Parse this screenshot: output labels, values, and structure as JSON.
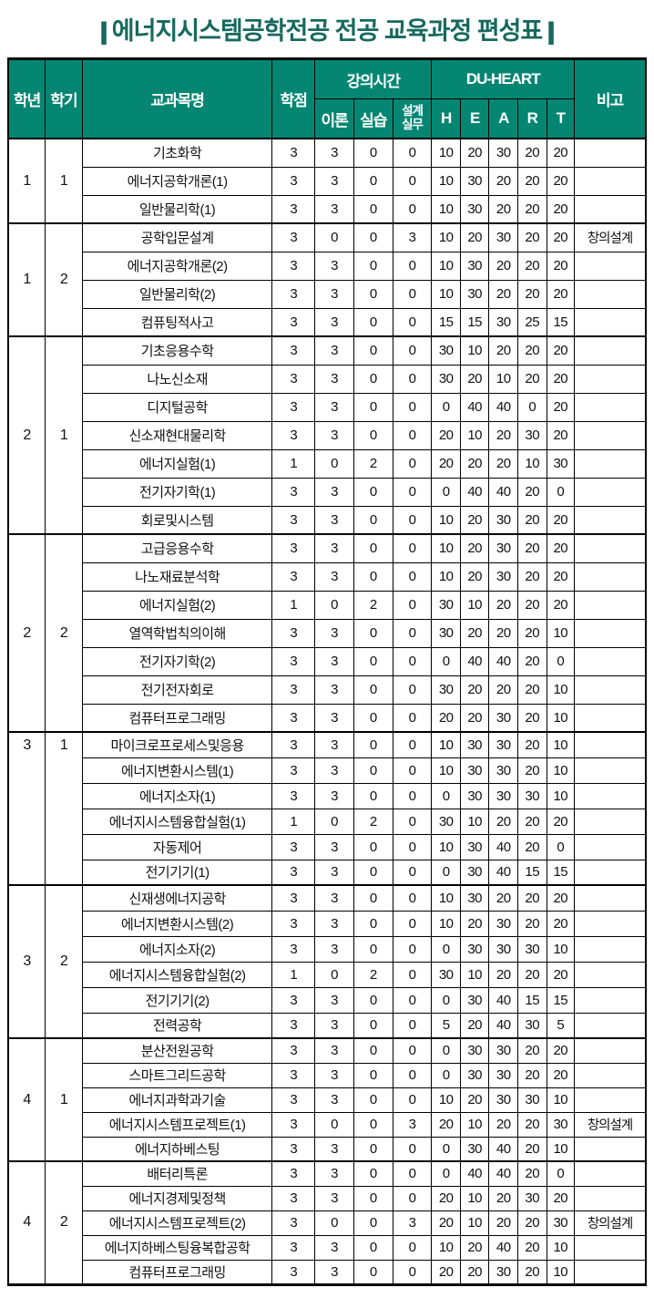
{
  "title": {
    "bar": "|",
    "text": "에너지시스템공학전공 전공 교육과정 편성표"
  },
  "colors": {
    "header_bg": "#058673",
    "header_text": "#ffffff",
    "title_text": "#17695e",
    "border": "#000000"
  },
  "table": {
    "headers": {
      "year": "학년",
      "semester": "학기",
      "course": "교과목명",
      "credits": "학점",
      "lecture_group": "강의시간",
      "theory": "이론",
      "practice": "실습",
      "design": "설계\n실무",
      "duheart_group": "DU-HEART",
      "h": "H",
      "e": "E",
      "a": "A",
      "r": "R",
      "t": "T",
      "note": "비고"
    },
    "sections": [
      {
        "year": "1",
        "semester": "1",
        "rows": [
          {
            "course": "기초화학",
            "credits": "3",
            "theory": "3",
            "practice": "0",
            "design": "0",
            "h": "10",
            "e": "20",
            "a": "30",
            "r": "20",
            "t": "20",
            "note": ""
          },
          {
            "course": "에너지공학개론(1)",
            "credits": "3",
            "theory": "3",
            "practice": "0",
            "design": "0",
            "h": "10",
            "e": "30",
            "a": "20",
            "r": "20",
            "t": "20",
            "note": ""
          },
          {
            "course": "일반물리학(1)",
            "credits": "3",
            "theory": "3",
            "practice": "0",
            "design": "0",
            "h": "10",
            "e": "30",
            "a": "20",
            "r": "20",
            "t": "20",
            "note": ""
          }
        ]
      },
      {
        "year": "1",
        "semester": "2",
        "rows": [
          {
            "course": "공학입문설계",
            "credits": "3",
            "theory": "0",
            "practice": "0",
            "design": "3",
            "h": "10",
            "e": "20",
            "a": "30",
            "r": "20",
            "t": "20",
            "note": "창의설계"
          },
          {
            "course": "에너지공학개론(2)",
            "credits": "3",
            "theory": "3",
            "practice": "0",
            "design": "0",
            "h": "10",
            "e": "30",
            "a": "20",
            "r": "20",
            "t": "20",
            "note": ""
          },
          {
            "course": "일반물리학(2)",
            "credits": "3",
            "theory": "3",
            "practice": "0",
            "design": "0",
            "h": "10",
            "e": "30",
            "a": "20",
            "r": "20",
            "t": "20",
            "note": ""
          },
          {
            "course": "컴퓨팅적사고",
            "credits": "3",
            "theory": "3",
            "practice": "0",
            "design": "0",
            "h": "15",
            "e": "15",
            "a": "30",
            "r": "25",
            "t": "15",
            "note": ""
          }
        ]
      },
      {
        "year": "2",
        "semester": "1",
        "rows": [
          {
            "course": "기초응용수학",
            "credits": "3",
            "theory": "3",
            "practice": "0",
            "design": "0",
            "h": "30",
            "e": "10",
            "a": "20",
            "r": "20",
            "t": "20",
            "note": ""
          },
          {
            "course": "나노신소재",
            "credits": "3",
            "theory": "3",
            "practice": "0",
            "design": "0",
            "h": "30",
            "e": "20",
            "a": "10",
            "r": "20",
            "t": "20",
            "note": ""
          },
          {
            "course": "디지털공학",
            "credits": "3",
            "theory": "3",
            "practice": "0",
            "design": "0",
            "h": "0",
            "e": "40",
            "a": "40",
            "r": "0",
            "t": "20",
            "note": ""
          },
          {
            "course": "신소재현대물리학",
            "credits": "3",
            "theory": "3",
            "practice": "0",
            "design": "0",
            "h": "20",
            "e": "10",
            "a": "20",
            "r": "30",
            "t": "20",
            "note": ""
          },
          {
            "course": "에너지실험(1)",
            "credits": "1",
            "theory": "0",
            "practice": "2",
            "design": "0",
            "h": "20",
            "e": "20",
            "a": "20",
            "r": "10",
            "t": "30",
            "note": ""
          },
          {
            "course": "전기자기학(1)",
            "credits": "3",
            "theory": "3",
            "practice": "0",
            "design": "0",
            "h": "0",
            "e": "40",
            "a": "40",
            "r": "20",
            "t": "0",
            "note": ""
          },
          {
            "course": "회로및시스템",
            "credits": "3",
            "theory": "3",
            "practice": "0",
            "design": "0",
            "h": "10",
            "e": "20",
            "a": "30",
            "r": "20",
            "t": "20",
            "note": ""
          }
        ]
      },
      {
        "year": "2",
        "semester": "2",
        "rows": [
          {
            "course": "고급응용수학",
            "credits": "3",
            "theory": "3",
            "practice": "0",
            "design": "0",
            "h": "10",
            "e": "20",
            "a": "30",
            "r": "20",
            "t": "20",
            "note": ""
          },
          {
            "course": "나노재료분석학",
            "credits": "3",
            "theory": "3",
            "practice": "0",
            "design": "0",
            "h": "10",
            "e": "20",
            "a": "30",
            "r": "20",
            "t": "20",
            "note": ""
          },
          {
            "course": "에너지실험(2)",
            "credits": "1",
            "theory": "0",
            "practice": "2",
            "design": "0",
            "h": "30",
            "e": "10",
            "a": "20",
            "r": "20",
            "t": "20",
            "note": ""
          },
          {
            "course": "열역학법칙의이해",
            "credits": "3",
            "theory": "3",
            "practice": "0",
            "design": "0",
            "h": "30",
            "e": "20",
            "a": "20",
            "r": "20",
            "t": "10",
            "note": ""
          },
          {
            "course": "전기자기학(2)",
            "credits": "3",
            "theory": "3",
            "practice": "0",
            "design": "0",
            "h": "0",
            "e": "40",
            "a": "40",
            "r": "20",
            "t": "0",
            "note": ""
          },
          {
            "course": "전기전자회로",
            "credits": "3",
            "theory": "3",
            "practice": "0",
            "design": "0",
            "h": "30",
            "e": "20",
            "a": "20",
            "r": "20",
            "t": "10",
            "note": ""
          },
          {
            "course": "컴퓨터프로그래밍",
            "credits": "3",
            "theory": "3",
            "practice": "0",
            "design": "0",
            "h": "20",
            "e": "20",
            "a": "30",
            "r": "20",
            "t": "10",
            "note": ""
          }
        ]
      },
      {
        "year": "3",
        "semester": "1",
        "year_valign": "top",
        "rows": [
          {
            "course": "마이크로프로세스및응용",
            "credits": "3",
            "theory": "3",
            "practice": "0",
            "design": "0",
            "h": "10",
            "e": "30",
            "a": "30",
            "r": "20",
            "t": "10",
            "note": ""
          },
          {
            "course": "에너지변환시스템(1)",
            "credits": "3",
            "theory": "3",
            "practice": "0",
            "design": "0",
            "h": "10",
            "e": "30",
            "a": "30",
            "r": "20",
            "t": "10",
            "note": ""
          },
          {
            "course": "에너지소자(1)",
            "credits": "3",
            "theory": "3",
            "practice": "0",
            "design": "0",
            "h": "0",
            "e": "30",
            "a": "30",
            "r": "30",
            "t": "10",
            "note": ""
          },
          {
            "course": "에너지시스템융합실험(1)",
            "credits": "1",
            "theory": "0",
            "practice": "2",
            "design": "0",
            "h": "30",
            "e": "10",
            "a": "20",
            "r": "20",
            "t": "20",
            "note": ""
          },
          {
            "course": "자동제어",
            "credits": "3",
            "theory": "3",
            "practice": "0",
            "design": "0",
            "h": "10",
            "e": "30",
            "a": "40",
            "r": "20",
            "t": "0",
            "note": ""
          },
          {
            "course": "전기기기(1)",
            "credits": "3",
            "theory": "3",
            "practice": "0",
            "design": "0",
            "h": "0",
            "e": "30",
            "a": "40",
            "r": "15",
            "t": "15",
            "note": ""
          }
        ]
      },
      {
        "year": "3",
        "semester": "2",
        "rows": [
          {
            "course": "신재생에너지공학",
            "credits": "3",
            "theory": "3",
            "practice": "0",
            "design": "0",
            "h": "10",
            "e": "30",
            "a": "20",
            "r": "20",
            "t": "20",
            "note": ""
          },
          {
            "course": "에너지변환시스템(2)",
            "credits": "3",
            "theory": "3",
            "practice": "0",
            "design": "0",
            "h": "10",
            "e": "20",
            "a": "30",
            "r": "20",
            "t": "20",
            "note": ""
          },
          {
            "course": "에너지소자(2)",
            "credits": "3",
            "theory": "3",
            "practice": "0",
            "design": "0",
            "h": "0",
            "e": "30",
            "a": "30",
            "r": "30",
            "t": "10",
            "note": ""
          },
          {
            "course": "에너지시스템융합실험(2)",
            "credits": "1",
            "theory": "0",
            "practice": "2",
            "design": "0",
            "h": "30",
            "e": "10",
            "a": "20",
            "r": "20",
            "t": "20",
            "note": ""
          },
          {
            "course": "전기기기(2)",
            "credits": "3",
            "theory": "3",
            "practice": "0",
            "design": "0",
            "h": "0",
            "e": "30",
            "a": "40",
            "r": "15",
            "t": "15",
            "note": ""
          },
          {
            "course": "전력공학",
            "credits": "3",
            "theory": "3",
            "practice": "0",
            "design": "0",
            "h": "5",
            "e": "20",
            "a": "40",
            "r": "30",
            "t": "5",
            "note": ""
          }
        ]
      },
      {
        "year": "4",
        "semester": "1",
        "rows": [
          {
            "course": "분산전원공학",
            "credits": "3",
            "theory": "3",
            "practice": "0",
            "design": "0",
            "h": "0",
            "e": "30",
            "a": "30",
            "r": "20",
            "t": "20",
            "note": ""
          },
          {
            "course": "스마트그리드공학",
            "credits": "3",
            "theory": "3",
            "practice": "0",
            "design": "0",
            "h": "0",
            "e": "30",
            "a": "30",
            "r": "20",
            "t": "20",
            "note": ""
          },
          {
            "course": "에너지과학과기술",
            "credits": "3",
            "theory": "3",
            "practice": "0",
            "design": "0",
            "h": "10",
            "e": "20",
            "a": "30",
            "r": "30",
            "t": "10",
            "note": ""
          },
          {
            "course": "에너지시스템프로젝트(1)",
            "credits": "3",
            "theory": "0",
            "practice": "0",
            "design": "3",
            "h": "20",
            "e": "10",
            "a": "20",
            "r": "20",
            "t": "30",
            "note": "창의설계"
          },
          {
            "course": "에너지하베스팅",
            "credits": "3",
            "theory": "3",
            "practice": "0",
            "design": "0",
            "h": "0",
            "e": "30",
            "a": "40",
            "r": "20",
            "t": "10",
            "note": ""
          }
        ]
      },
      {
        "year": "4",
        "semester": "2",
        "rows": [
          {
            "course": "배터리특론",
            "credits": "3",
            "theory": "3",
            "practice": "0",
            "design": "0",
            "h": "0",
            "e": "40",
            "a": "40",
            "r": "20",
            "t": "0",
            "note": ""
          },
          {
            "course": "에너지경제및정책",
            "credits": "3",
            "theory": "3",
            "practice": "0",
            "design": "0",
            "h": "20",
            "e": "10",
            "a": "20",
            "r": "30",
            "t": "20",
            "note": ""
          },
          {
            "course": "에너지시스템프로젝트(2)",
            "credits": "3",
            "theory": "0",
            "practice": "0",
            "design": "3",
            "h": "20",
            "e": "10",
            "a": "20",
            "r": "20",
            "t": "30",
            "note": "창의설계"
          },
          {
            "course": "에너지하베스팅융복합공학",
            "credits": "3",
            "theory": "3",
            "practice": "0",
            "design": "0",
            "h": "10",
            "e": "20",
            "a": "40",
            "r": "20",
            "t": "10",
            "note": ""
          },
          {
            "course": "컴퓨터프로그래밍",
            "credits": "3",
            "theory": "3",
            "practice": "0",
            "design": "0",
            "h": "20",
            "e": "20",
            "a": "30",
            "r": "20",
            "t": "10",
            "note": ""
          }
        ]
      }
    ]
  }
}
